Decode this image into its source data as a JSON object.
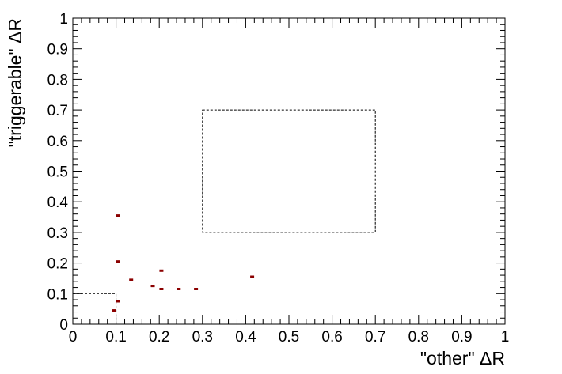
{
  "chart_data": {
    "type": "scatter",
    "xlabel": "\"other\" ΔR",
    "ylabel": "\"triggerable\" ΔR",
    "xlim": [
      0,
      1
    ],
    "ylim": [
      0,
      1
    ],
    "x_ticks": [
      "0",
      "0.1",
      "0.2",
      "0.3",
      "0.4",
      "0.5",
      "0.6",
      "0.7",
      "0.8",
      "0.9",
      "1"
    ],
    "y_ticks": [
      "0",
      "0.1",
      "0.2",
      "0.3",
      "0.4",
      "0.5",
      "0.6",
      "0.7",
      "0.8",
      "0.9",
      "1"
    ],
    "grid": false,
    "marker_color": "#8b0000",
    "points": [
      {
        "x": 0.095,
        "y": 0.045
      },
      {
        "x": 0.105,
        "y": 0.075
      },
      {
        "x": 0.105,
        "y": 0.205
      },
      {
        "x": 0.105,
        "y": 0.355
      },
      {
        "x": 0.135,
        "y": 0.145
      },
      {
        "x": 0.185,
        "y": 0.125
      },
      {
        "x": 0.205,
        "y": 0.115
      },
      {
        "x": 0.205,
        "y": 0.175
      },
      {
        "x": 0.245,
        "y": 0.115
      },
      {
        "x": 0.285,
        "y": 0.115
      },
      {
        "x": 0.415,
        "y": 0.155
      }
    ],
    "regions": [
      {
        "x0": 0,
        "x1": 0.1,
        "y0": 0,
        "y1": 0.1,
        "style": "dashed"
      },
      {
        "x0": 0.3,
        "x1": 0.7,
        "y0": 0.3,
        "y1": 0.7,
        "style": "dashed"
      }
    ]
  }
}
